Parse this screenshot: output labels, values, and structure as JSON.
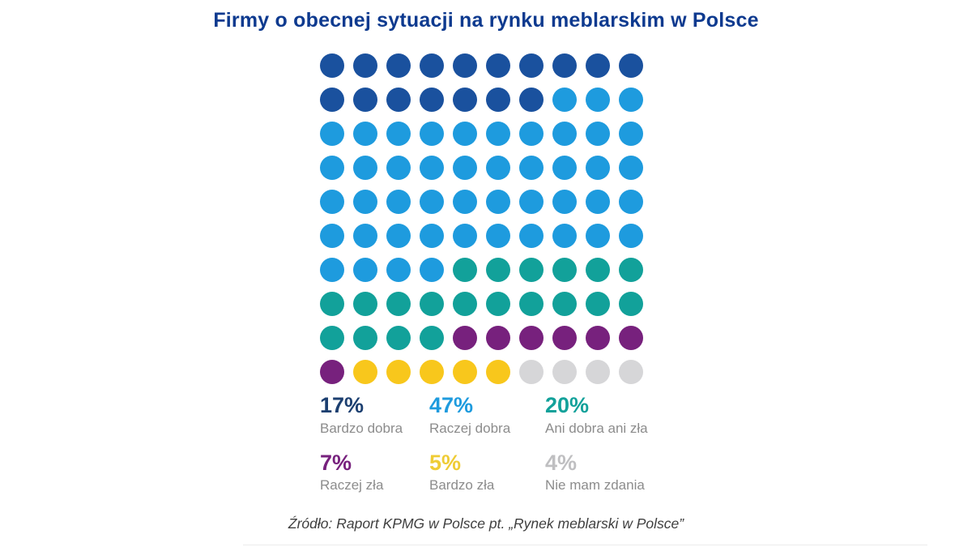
{
  "title": "Firmy o obecnej sytuacji na rynku meblarskim w Polsce",
  "source": "Źródło: Raport KPMG w Polsce pt. „Rynek meblarski w Polsce”",
  "colors": {
    "background": "#FFFFFF",
    "title": "#0E3A8F",
    "legend_label": "#8C8C8C",
    "source_text": "#3F3F3F"
  },
  "chart_data": {
    "type": "waffle",
    "title": "Firmy o obecnej sytuacji na rynku meblarskim w Polsce",
    "grid": {
      "columns": 10,
      "rows": 10,
      "total_dots": 100,
      "fill_order": "left-to-right, top-to-bottom"
    },
    "unit": "%",
    "series": [
      {
        "key": "bardzo-dobra",
        "label": "Bardzo dobra",
        "value": 17,
        "dot_color": "#1A519E",
        "text_color": "#1C3F70"
      },
      {
        "key": "raczej-dobra",
        "label": "Raczej dobra",
        "value": 47,
        "dot_color": "#1E9BDE",
        "text_color": "#1E9BDE"
      },
      {
        "key": "ani-dobra-ani-zla",
        "label": "Ani dobra ani zła",
        "value": 20,
        "dot_color": "#12A19A",
        "text_color": "#12A19A"
      },
      {
        "key": "raczej-zla",
        "label": "Raczej zła",
        "value": 7,
        "dot_color": "#77217D",
        "text_color": "#77217D"
      },
      {
        "key": "bardzo-zla",
        "label": "Bardzo zła",
        "value": 5,
        "dot_color": "#F8C71C",
        "text_color": "#EFCC35"
      },
      {
        "key": "nie-mam-zdania",
        "label": "Nie mam zdania",
        "value": 4,
        "dot_color": "#D6D6D8",
        "text_color": "#BFBFC1"
      }
    ],
    "legend_layout": {
      "columns": 3,
      "rows": 2
    },
    "source": "Źródło: Raport KPMG w Polsce pt. „Rynek meblarski w Polsce”"
  }
}
